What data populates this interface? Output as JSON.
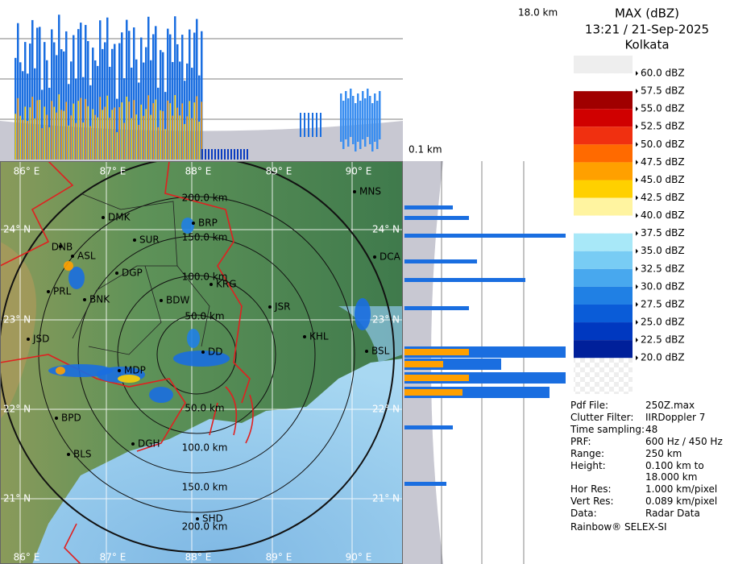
{
  "header": {
    "title": "MAX (dBZ)",
    "time": "13:21 / 21-Sep-2025",
    "location": "Kolkata"
  },
  "profile_labels": {
    "top_height": "18.0 km",
    "side_height": "0.1 km"
  },
  "legend": [
    {
      "label": "60.0 dBZ",
      "color": "#eeeeee"
    },
    {
      "label": "57.5 dBZ",
      "color": "#ffffff"
    },
    {
      "label": "55.0 dBZ",
      "color": "#a00000"
    },
    {
      "label": "52.5 dBZ",
      "color": "#d00000"
    },
    {
      "label": "50.0 dBZ",
      "color": "#f03010"
    },
    {
      "label": "47.5 dBZ",
      "color": "#ff6a00"
    },
    {
      "label": "45.0 dBZ",
      "color": "#ffa000"
    },
    {
      "label": "42.5 dBZ",
      "color": "#ffd000"
    },
    {
      "label": "40.0 dBZ",
      "color": "#fff4a0"
    },
    {
      "label": "37.5 dBZ",
      "color": "#ffffff"
    },
    {
      "label": "35.0 dBZ",
      "color": "#a8e8f8"
    },
    {
      "label": "32.5 dBZ",
      "color": "#78ccf4"
    },
    {
      "label": "30.0 dBZ",
      "color": "#48a8ee"
    },
    {
      "label": "27.5 dBZ",
      "color": "#2080e4"
    },
    {
      "label": "25.0 dBZ",
      "color": "#0a5cd8"
    },
    {
      "label": "22.5 dBZ",
      "color": "#0038c0"
    },
    {
      "label": "20.0 dBZ",
      "color": "#00209a"
    }
  ],
  "info": [
    {
      "label": "Pdf File:",
      "value": [
        "250Z.max"
      ]
    },
    {
      "label": "Clutter Filter:",
      "value": [
        "IIRDoppler 7"
      ]
    },
    {
      "label": "Time sampling:",
      "value": [
        "48"
      ]
    },
    {
      "label": "PRF:",
      "value": [
        "600 Hz / 450 Hz"
      ]
    },
    {
      "label": "Range:",
      "value": [
        "250 km"
      ]
    },
    {
      "label": "Height:",
      "value": [
        "0.100 km to",
        "18.000 km"
      ]
    },
    {
      "label": "Hor Res:",
      "value": [
        "1.000 km/pixel"
      ]
    },
    {
      "label": "Vert Res:",
      "value": [
        "0.089 km/pixel"
      ]
    },
    {
      "label": "Data:",
      "value": [
        "Radar Data"
      ]
    }
  ],
  "footer": "Rainbow® SELEX-SI",
  "map": {
    "longitudes": [
      "86° E",
      "87° E",
      "88° E",
      "89° E",
      "90° E"
    ],
    "latitudes": [
      "24° N",
      "23° N",
      "22° N",
      "21° N"
    ],
    "ranges": [
      "50.0 km",
      "100.0 km",
      "150.0 km",
      "200.0 km"
    ],
    "stations": [
      "MNS",
      "DMK",
      "BRP",
      "SUR",
      "DNB",
      "ASL",
      "DCA",
      "DGP",
      "KRG",
      "PRL",
      "BNK",
      "BDW",
      "JSR",
      "JSD",
      "KHL",
      "BSL",
      "DD",
      "MDP",
      "BPD",
      "DGH",
      "BLS",
      "SHD"
    ]
  }
}
